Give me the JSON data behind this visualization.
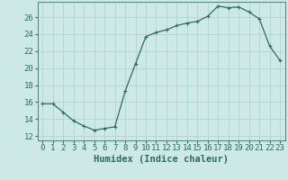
{
  "x": [
    0,
    1,
    2,
    3,
    4,
    5,
    6,
    7,
    8,
    9,
    10,
    11,
    12,
    13,
    14,
    15,
    16,
    17,
    18,
    19,
    20,
    21,
    22,
    23
  ],
  "y": [
    15.8,
    15.8,
    14.8,
    13.8,
    13.2,
    12.7,
    12.9,
    13.1,
    17.3,
    20.5,
    23.7,
    24.2,
    24.5,
    25.0,
    25.3,
    25.5,
    26.1,
    27.3,
    27.1,
    27.2,
    26.6,
    25.8,
    22.6,
    20.9
  ],
  "line_color": "#2e6b5e",
  "marker": "+",
  "marker_size": 3,
  "marker_lw": 0.8,
  "line_width": 0.9,
  "bg_color": "#cce9e5",
  "grid_color": "#b0d4d0",
  "xlabel": "Humidex (Indice chaleur)",
  "xlim": [
    -0.5,
    23.5
  ],
  "ylim": [
    11.5,
    27.8
  ],
  "yticks": [
    12,
    14,
    16,
    18,
    20,
    22,
    24,
    26
  ],
  "xticks": [
    0,
    1,
    2,
    3,
    4,
    5,
    6,
    7,
    8,
    9,
    10,
    11,
    12,
    13,
    14,
    15,
    16,
    17,
    18,
    19,
    20,
    21,
    22,
    23
  ],
  "tick_fontsize": 6.5,
  "label_fontsize": 7.5,
  "tick_color": "#2e6b5e",
  "spine_color": "#5a8a80"
}
